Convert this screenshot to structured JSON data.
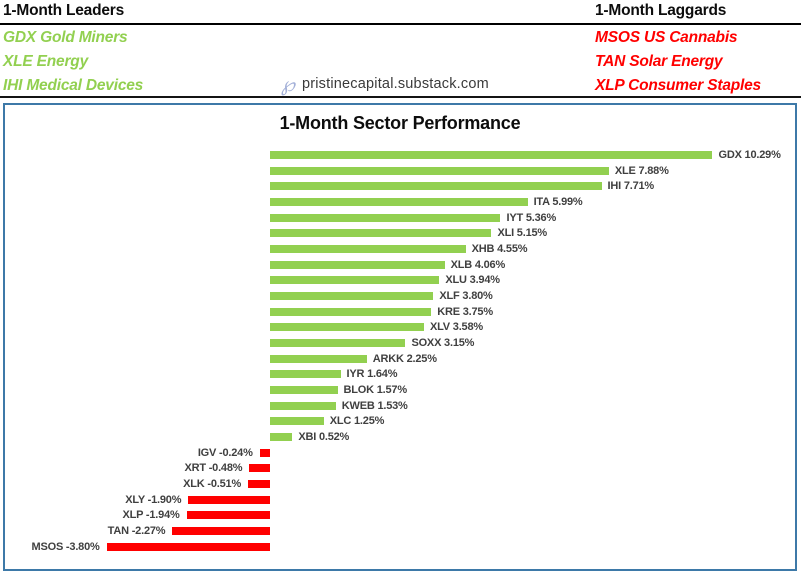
{
  "header": {
    "leaders": {
      "title": "1-Month Leaders",
      "items": [
        {
          "label": "GDX Gold Miners"
        },
        {
          "label": "XLE Energy"
        },
        {
          "label": "IHI Medical Devices"
        }
      ]
    },
    "laggards": {
      "title": "1-Month Laggards",
      "items": [
        {
          "label": "MSOS US Cannabis"
        },
        {
          "label": "TAN Solar Energy"
        },
        {
          "label": "XLP Consumer Staples"
        }
      ]
    },
    "logo": {
      "glyph": "℘",
      "site": "pristinecapital.substack.com"
    }
  },
  "colors": {
    "positive": "#92D050",
    "negative": "#FF0000",
    "leaders_text": "#92D050",
    "laggards_text": "#FF0000",
    "chart_border": "#3D79A8",
    "bar_label": "#404040"
  },
  "chart_data": {
    "type": "bar",
    "orientation": "horizontal",
    "title": "1-Month Sector Performance",
    "unit": "%",
    "xlim": [
      -6.2,
      12.3
    ],
    "grid": false,
    "value_labels": "outside-end",
    "positive_color": "#92D050",
    "negative_color": "#FF0000",
    "series": [
      {
        "ticker": "GDX",
        "value": 10.29
      },
      {
        "ticker": "XLE",
        "value": 7.88
      },
      {
        "ticker": "IHI",
        "value": 7.71
      },
      {
        "ticker": "ITA",
        "value": 5.99
      },
      {
        "ticker": "IYT",
        "value": 5.36
      },
      {
        "ticker": "XLI",
        "value": 5.15
      },
      {
        "ticker": "XHB",
        "value": 4.55
      },
      {
        "ticker": "XLB",
        "value": 4.06
      },
      {
        "ticker": "XLU",
        "value": 3.94
      },
      {
        "ticker": "XLF",
        "value": 3.8
      },
      {
        "ticker": "KRE",
        "value": 3.75
      },
      {
        "ticker": "XLV",
        "value": 3.58
      },
      {
        "ticker": "SOXX",
        "value": 3.15
      },
      {
        "ticker": "ARKK",
        "value": 2.25
      },
      {
        "ticker": "IYR",
        "value": 1.64
      },
      {
        "ticker": "BLOK",
        "value": 1.57
      },
      {
        "ticker": "KWEB",
        "value": 1.53
      },
      {
        "ticker": "XLC",
        "value": 1.25
      },
      {
        "ticker": "XBI",
        "value": 0.52
      },
      {
        "ticker": "IGV",
        "value": -0.24
      },
      {
        "ticker": "XRT",
        "value": -0.48
      },
      {
        "ticker": "XLK",
        "value": -0.51
      },
      {
        "ticker": "XLY",
        "value": -1.9
      },
      {
        "ticker": "XLP",
        "value": -1.94
      },
      {
        "ticker": "TAN",
        "value": -2.27
      },
      {
        "ticker": "MSOS",
        "value": -3.8
      }
    ]
  }
}
